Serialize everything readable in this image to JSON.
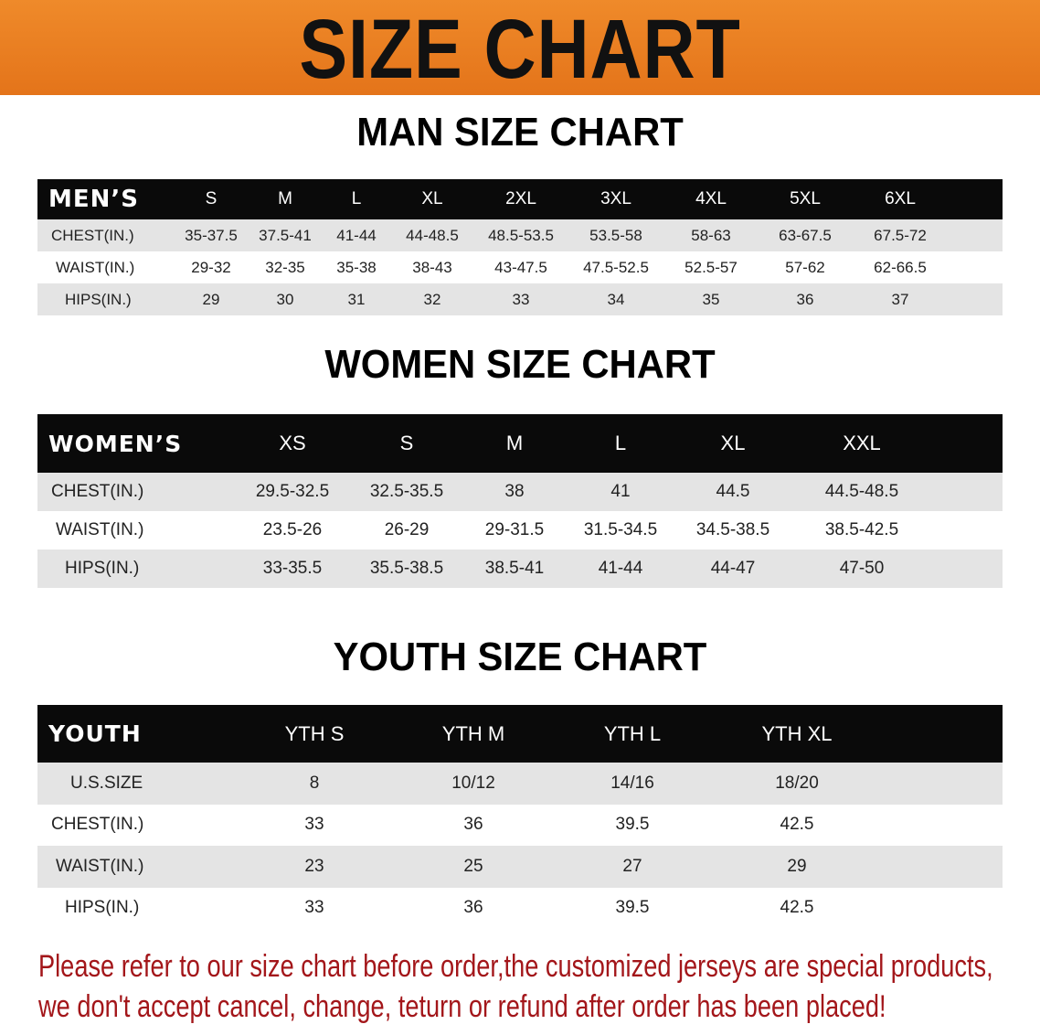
{
  "banner_title": "SIZE CHART",
  "men": {
    "title": "MAN SIZE CHART",
    "header": [
      "MEN’S",
      "S",
      "M",
      "L",
      "XL",
      "2XL",
      "3XL",
      "4XL",
      "5XL",
      "6XL"
    ],
    "rows": [
      [
        "CHEST(IN.)",
        "35-37.5",
        "37.5-41",
        "41-44",
        "44-48.5",
        "48.5-53.5",
        "53.5-58",
        "58-63",
        "63-67.5",
        "67.5-72"
      ],
      [
        "WAIST(IN.)",
        "29-32",
        "32-35",
        "35-38",
        "38-43",
        "43-47.5",
        "47.5-52.5",
        "52.5-57",
        "57-62",
        "62-66.5"
      ],
      [
        "HIPS(IN.)",
        "29",
        "30",
        "31",
        "32",
        "33",
        "34",
        "35",
        "36",
        "37"
      ]
    ]
  },
  "women": {
    "title": "WOMEN SIZE CHART",
    "header": [
      "WOMEN’S",
      "XS",
      "S",
      "M",
      "L",
      "XL",
      "XXL"
    ],
    "rows": [
      [
        "CHEST(IN.)",
        "29.5-32.5",
        "32.5-35.5",
        "38",
        "41",
        "44.5",
        "44.5-48.5"
      ],
      [
        "WAIST(IN.)",
        "23.5-26",
        "26-29",
        "29-31.5",
        "31.5-34.5",
        "34.5-38.5",
        "38.5-42.5"
      ],
      [
        "HIPS(IN.)",
        "33-35.5",
        "35.5-38.5",
        "38.5-41",
        "41-44",
        "44-47",
        "47-50"
      ]
    ]
  },
  "youth": {
    "title": "YOUTH SIZE CHART",
    "header": [
      "YOUTH",
      "YTH S",
      "YTH M",
      "YTH L",
      "YTH XL"
    ],
    "rows": [
      [
        "U.S.SIZE",
        "8",
        "10/12",
        "14/16",
        "18/20"
      ],
      [
        "CHEST(IN.)",
        "33",
        "36",
        "39.5",
        "42.5"
      ],
      [
        "WAIST(IN.)",
        "23",
        "25",
        "27",
        "29"
      ],
      [
        "HIPS(IN.)",
        "33",
        "36",
        "39.5",
        "42.5"
      ]
    ]
  },
  "notice": {
    "line1": "Please refer to our size chart before order,the customized jerseys are special products,",
    "line2": "we don't accept cancel, change, teturn or refund after order has been placed!"
  },
  "colors": {
    "banner": "#e97d20",
    "header_row": "#0a0a0a",
    "stripe": "#e4e4e4",
    "notice": "#a3161a"
  }
}
